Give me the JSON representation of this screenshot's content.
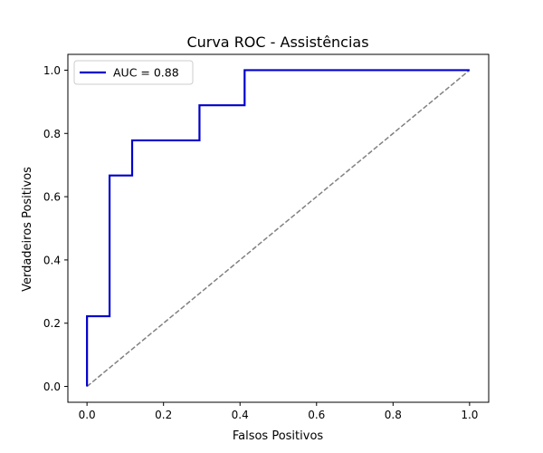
{
  "chart_data": {
    "type": "line",
    "title": "Curva ROC - Assistências",
    "xlabel": "Falsos Positivos",
    "ylabel": "Verdadeiros Positivos",
    "xlim": [
      -0.05,
      1.05
    ],
    "ylim": [
      -0.05,
      1.05
    ],
    "xticks": [
      0.0,
      0.2,
      0.4,
      0.6,
      0.8,
      1.0
    ],
    "xtick_labels": [
      "0.0",
      "0.2",
      "0.4",
      "0.6",
      "0.8",
      "1.0"
    ],
    "yticks": [
      0.0,
      0.2,
      0.4,
      0.6,
      0.8,
      1.0
    ],
    "ytick_labels": [
      "0.0",
      "0.2",
      "0.4",
      "0.6",
      "0.8",
      "1.0"
    ],
    "grid": false,
    "legend_position": "upper left",
    "series": [
      {
        "name": "AUC = 0.88",
        "color": "#0000cc",
        "style": "solid",
        "x": [
          0.0,
          0.0,
          0.059,
          0.059,
          0.118,
          0.118,
          0.294,
          0.294,
          0.412,
          0.412,
          1.0
        ],
        "y": [
          0.0,
          0.222,
          0.222,
          0.667,
          0.667,
          0.778,
          0.778,
          0.889,
          0.889,
          1.0,
          1.0
        ]
      },
      {
        "color": "#808080",
        "style": "dashed",
        "x": [
          0.0,
          1.0
        ],
        "y": [
          0.0,
          1.0
        ]
      }
    ]
  }
}
